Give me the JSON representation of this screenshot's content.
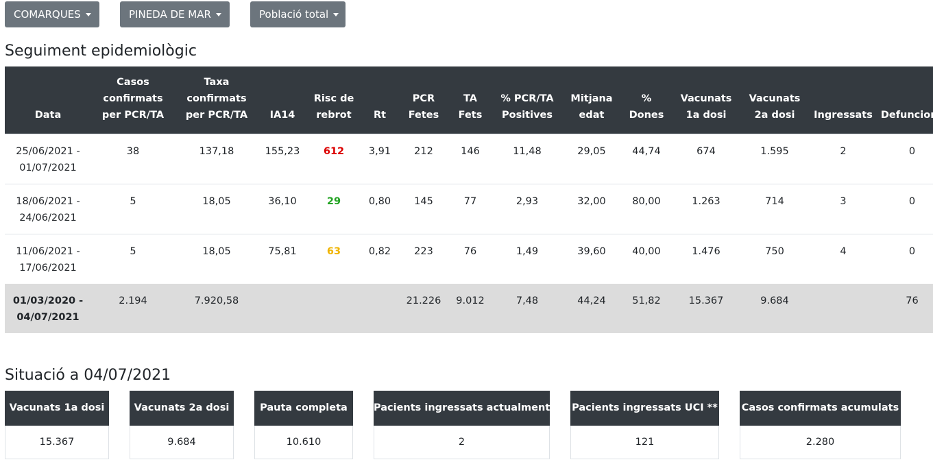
{
  "filters": {
    "region_type": "COMARQUES",
    "municipality": "PINEDA DE MAR",
    "population": "Població total"
  },
  "section1": {
    "title": "Seguiment epidemiològic",
    "headers": [
      "Data",
      "Casos\nconfirmats\nper PCR/TA",
      "Taxa\nconfirmats\nper PCR/TA",
      "IA14",
      "Risc de\nrebrot",
      "Rt",
      "PCR\nFetes",
      "TA\nFets",
      "% PCR/TA\nPositives",
      "Mitjana\nedat",
      "%\nDones",
      "Vacunats\n1a dosi",
      "Vacunats\n2a dosi",
      "Ingressats",
      "Defuncions"
    ],
    "rows": [
      {
        "date": "25/06/2021 -\n01/07/2021",
        "casos": "38",
        "taxa": "137,18",
        "ia14": "155,23",
        "risc": "612",
        "risc_color": "#dc0000",
        "rt": "3,91",
        "pcr": "212",
        "ta": "146",
        "pos": "11,48",
        "edat": "29,05",
        "dones": "44,74",
        "vac1": "674",
        "vac2": "1.595",
        "ingressats": "2",
        "defuncions": "0"
      },
      {
        "date": "18/06/2021 -\n24/06/2021",
        "casos": "5",
        "taxa": "18,05",
        "ia14": "36,10",
        "risc": "29",
        "risc_color": "#22a322",
        "rt": "0,80",
        "pcr": "145",
        "ta": "77",
        "pos": "2,93",
        "edat": "32,00",
        "dones": "80,00",
        "vac1": "1.263",
        "vac2": "714",
        "ingressats": "3",
        "defuncions": "0"
      },
      {
        "date": "11/06/2021 -\n17/06/2021",
        "casos": "5",
        "taxa": "18,05",
        "ia14": "75,81",
        "risc": "63",
        "risc_color": "#f0b400",
        "rt": "0,82",
        "pcr": "223",
        "ta": "76",
        "pos": "1,49",
        "edat": "39,60",
        "dones": "40,00",
        "vac1": "1.476",
        "vac2": "750",
        "ingressats": "4",
        "defuncions": "0"
      }
    ],
    "total": {
      "date": "01/03/2020 -\n04/07/2021",
      "casos": "2.194",
      "taxa": "7.920,58",
      "ia14": "",
      "risc": "",
      "rt": "",
      "pcr": "21.226",
      "ta": "9.012",
      "pos": "7,48",
      "edat": "44,24",
      "dones": "51,82",
      "vac1": "15.367",
      "vac2": "9.684",
      "ingressats": "",
      "defuncions": "76"
    }
  },
  "section2": {
    "title": "Situació a 04/07/2021",
    "cards": [
      {
        "label": "Vacunats 1a dosi",
        "value": "15.367"
      },
      {
        "label": "Vacunats 2a dosi",
        "value": "9.684"
      },
      {
        "label": "Pauta completa",
        "value": "10.610"
      },
      {
        "label": "Pacients ingressats actualment",
        "value": "2"
      },
      {
        "label": "Pacients ingressats UCI **",
        "value": "121"
      },
      {
        "label": "Casos confirmats acumulats",
        "value": "2.280"
      }
    ]
  }
}
